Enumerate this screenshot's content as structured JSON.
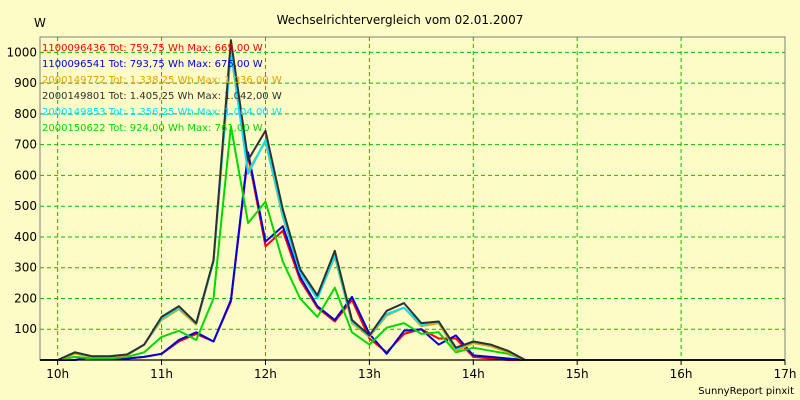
{
  "chart_data": {
    "type": "line",
    "title": "Wechselrichtervergleich vom 02.01.2007",
    "ylabel": "W",
    "ylim": [
      0,
      1050
    ],
    "yticks": [
      100,
      200,
      300,
      400,
      500,
      600,
      700,
      800,
      900,
      1000
    ],
    "xlim": [
      9.83,
      17.0
    ],
    "xticks": [
      {
        "value": 10,
        "label": "10h"
      },
      {
        "value": 11,
        "label": "11h"
      },
      {
        "value": 12,
        "label": "12h"
      },
      {
        "value": 13,
        "label": "13h"
      },
      {
        "value": 14,
        "label": "14h"
      },
      {
        "value": 15,
        "label": "15h"
      },
      {
        "value": 16,
        "label": "16h"
      },
      {
        "value": 17,
        "label": "17h"
      }
    ],
    "grid": true,
    "legend_position": "top-left",
    "x": [
      9.833,
      10.0,
      10.167,
      10.333,
      10.5,
      10.667,
      10.833,
      11.0,
      11.167,
      11.333,
      11.5,
      11.667,
      11.833,
      12.0,
      12.167,
      12.333,
      12.5,
      12.667,
      12.833,
      13.0,
      13.167,
      13.333,
      13.5,
      13.667,
      13.833,
      14.0,
      14.167,
      14.333,
      14.5,
      14.667,
      14.833,
      15.0,
      15.167,
      15.333,
      15.5,
      15.667,
      15.833,
      16.0,
      16.167,
      16.333,
      16.5,
      16.667,
      16.833,
      17.0
    ],
    "series": [
      {
        "name": "1100096436",
        "legend": "1100096436 Tot: 759,75 Wh Max: 665,00 W",
        "color": "#ff0000",
        "values": [
          0,
          0,
          0,
          10,
          5,
          5,
          10,
          20,
          60,
          85,
          60,
          190,
          665,
          370,
          420,
          260,
          170,
          125,
          195,
          70,
          25,
          85,
          100,
          70,
          70,
          10,
          5,
          0,
          0,
          0,
          0,
          0,
          0,
          0,
          0,
          0,
          0,
          0,
          0,
          0,
          0,
          0,
          0,
          0
        ]
      },
      {
        "name": "1100096541",
        "legend": "1100096541 Tot: 793,75 Wh Max: 675,00 W",
        "color": "#0000dd",
        "values": [
          0,
          0,
          0,
          10,
          5,
          5,
          10,
          20,
          65,
          90,
          60,
          195,
          675,
          385,
          435,
          270,
          175,
          130,
          205,
          85,
          20,
          95,
          100,
          50,
          80,
          15,
          10,
          5,
          0,
          0,
          0,
          0,
          0,
          0,
          0,
          0,
          0,
          0,
          0,
          0,
          0,
          0,
          0,
          0
        ]
      },
      {
        "name": "2000149772",
        "legend": "2000149772 Tot: 1.338,25 Wh Max: 1.036,00 W",
        "color": "#e8a000",
        "values": [
          0,
          0,
          20,
          10,
          10,
          15,
          50,
          130,
          165,
          115,
          320,
          1000,
          615,
          710,
          465,
          285,
          200,
          335,
          120,
          75,
          145,
          170,
          110,
          120,
          30,
          55,
          45,
          25,
          0,
          0,
          0,
          0,
          0,
          0,
          0,
          0,
          0,
          0,
          0,
          0,
          0,
          0,
          0,
          0
        ]
      },
      {
        "name": "2000149801",
        "legend": "2000149801 Tot: 1.405,25 Wh Max: 1.042,00 W",
        "color": "#303030",
        "values": [
          0,
          0,
          25,
          12,
          12,
          18,
          50,
          140,
          175,
          120,
          325,
          1040,
          650,
          745,
          490,
          295,
          210,
          355,
          130,
          80,
          160,
          185,
          120,
          125,
          40,
          60,
          50,
          30,
          0,
          0,
          0,
          0,
          0,
          0,
          0,
          0,
          0,
          0,
          0,
          0,
          0,
          0,
          0,
          0
        ]
      },
      {
        "name": "2000149853",
        "legend": "2000149853 Tot: 1.356,25 Wh Max: 1.004,00 W",
        "color": "#00e0ff",
        "values": [
          0,
          0,
          25,
          12,
          12,
          18,
          50,
          135,
          170,
          118,
          320,
          1004,
          605,
          715,
          470,
          285,
          200,
          340,
          125,
          78,
          150,
          170,
          115,
          125,
          35,
          60,
          50,
          30,
          0,
          0,
          0,
          0,
          0,
          0,
          0,
          0,
          0,
          0,
          0,
          0,
          0,
          0,
          0,
          0
        ]
      },
      {
        "name": "2000150622",
        "legend": "2000150622 Tot: 924,00 Wh Max: 761,00 W",
        "color": "#00d800",
        "values": [
          0,
          0,
          10,
          5,
          5,
          10,
          25,
          75,
          95,
          65,
          200,
          760,
          445,
          515,
          320,
          200,
          140,
          235,
          90,
          50,
          105,
          120,
          85,
          90,
          25,
          40,
          30,
          20,
          0,
          0,
          0,
          0,
          0,
          0,
          0,
          0,
          0,
          0,
          0,
          0,
          0,
          0,
          0,
          0
        ]
      }
    ]
  },
  "credit": "SunnyReport pinxit"
}
